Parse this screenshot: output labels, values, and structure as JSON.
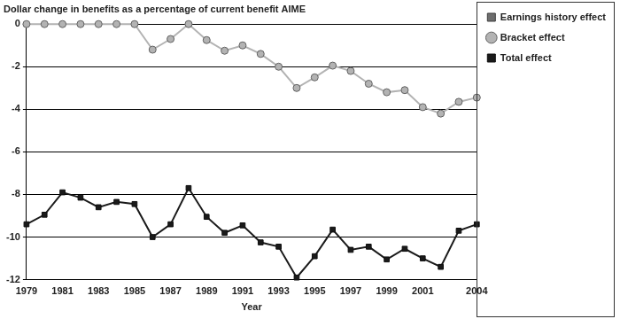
{
  "chart_data": {
    "type": "line",
    "title": "Dollar change in benefits as a percentage of current benefit AIME",
    "x_label": "Year",
    "x": [
      1979,
      1980,
      1981,
      1982,
      1983,
      1984,
      1985,
      1986,
      1987,
      1988,
      1989,
      1990,
      1991,
      1992,
      1993,
      1994,
      1995,
      1996,
      1997,
      1998,
      1999,
      2000,
      2001,
      2002,
      2003,
      2004
    ],
    "xlim": [
      1979,
      2004
    ],
    "xticks": [
      1979,
      1981,
      1983,
      1985,
      1987,
      1989,
      1991,
      1993,
      1995,
      1997,
      1999,
      2001,
      2004
    ],
    "ylim": [
      -12,
      0
    ],
    "yticks": [
      -12,
      -10,
      -8,
      -6,
      -4,
      -2,
      0
    ],
    "grid": "y",
    "legend": "top right",
    "series": [
      {
        "name": "Earnings history effect",
        "color": "#6e6e6e",
        "marker": "square",
        "values": [
          null,
          null,
          null,
          null,
          null,
          null,
          null,
          null,
          null,
          null,
          null,
          null,
          null,
          null,
          null,
          null,
          null,
          null,
          null,
          null,
          null,
          null,
          null,
          null,
          null,
          null
        ]
      },
      {
        "name": "Bracket effect",
        "color": "#b3b3b3",
        "marker": "circle",
        "values": [
          0,
          0,
          0,
          0,
          0,
          0,
          0,
          -1.2,
          -0.7,
          0,
          -0.75,
          -1.25,
          -1.0,
          -1.4,
          -2.0,
          -3.0,
          -2.5,
          -1.95,
          -2.2,
          -2.8,
          -3.2,
          -3.1,
          -3.9,
          -4.2,
          -3.65,
          -3.45
        ]
      },
      {
        "name": "Total effect",
        "color": "#1a1a1a",
        "marker": "square",
        "values": [
          -9.4,
          -8.95,
          -7.9,
          -8.15,
          -8.6,
          -8.35,
          -8.45,
          -10.0,
          -9.4,
          -7.7,
          -9.05,
          -9.8,
          -9.45,
          -10.25,
          -10.45,
          -11.9,
          -10.9,
          -9.65,
          -10.6,
          -10.45,
          -11.05,
          -10.55,
          -11.0,
          -11.4,
          -9.7,
          -9.4
        ]
      }
    ]
  }
}
